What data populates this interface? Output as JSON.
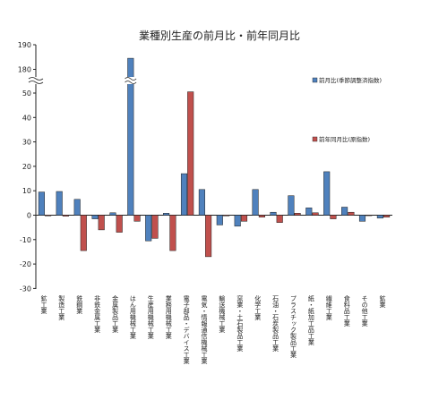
{
  "chart_data": {
    "type": "bar",
    "title": "業種別生産の前月比・前年同月比",
    "xlabel": "",
    "ylabel": "",
    "ylim": [
      -30,
      60
    ],
    "axis_break": {
      "shown": true,
      "from": 60,
      "to": 180,
      "upper_ticks": [
        180,
        190
      ]
    },
    "yticks": [
      "190",
      "180",
      "50",
      "40",
      "30",
      "20",
      "10",
      "0",
      "-10",
      "-20",
      "-30"
    ],
    "legend_position": "right",
    "grid": false,
    "categories": [
      "鉱工業",
      "製造工業",
      "鉄鋼業",
      "非鉄金属工業",
      "金属製品工業",
      "はん用機械工業",
      "生産用機械工業",
      "業務用機械工業",
      "電子部品・デバイス工業",
      "電気・情報通信機械工業",
      "輸送機械工業",
      "窯業・土石製品工業",
      "化学工業",
      "石油・石炭製品工業",
      "プラスチック製品工業",
      "紙・紙加工品工業",
      "繊維工業",
      "食料品工業",
      "その他工業",
      "鉱業"
    ],
    "series": [
      {
        "name": "前月比(季節調整済指数)",
        "color": "#4f81bd",
        "values": [
          9.5,
          9.7,
          6.5,
          -1.5,
          1.0,
          184.5,
          -10.5,
          0.8,
          17.0,
          10.5,
          -4.0,
          -4.5,
          10.5,
          1.2,
          8.0,
          3.0,
          17.8,
          3.3,
          -2.5,
          -1.2
        ]
      },
      {
        "name": "前年同月比(原指数)",
        "color": "#c0504d",
        "values": [
          -0.3,
          -0.4,
          -14.5,
          -6.0,
          -7.0,
          -2.5,
          -9.5,
          -14.5,
          50.5,
          -17.0,
          -0.3,
          -2.5,
          -0.8,
          -3.0,
          0.8,
          1.0,
          -1.5,
          1.2,
          -0.2,
          -0.8
        ]
      }
    ]
  }
}
